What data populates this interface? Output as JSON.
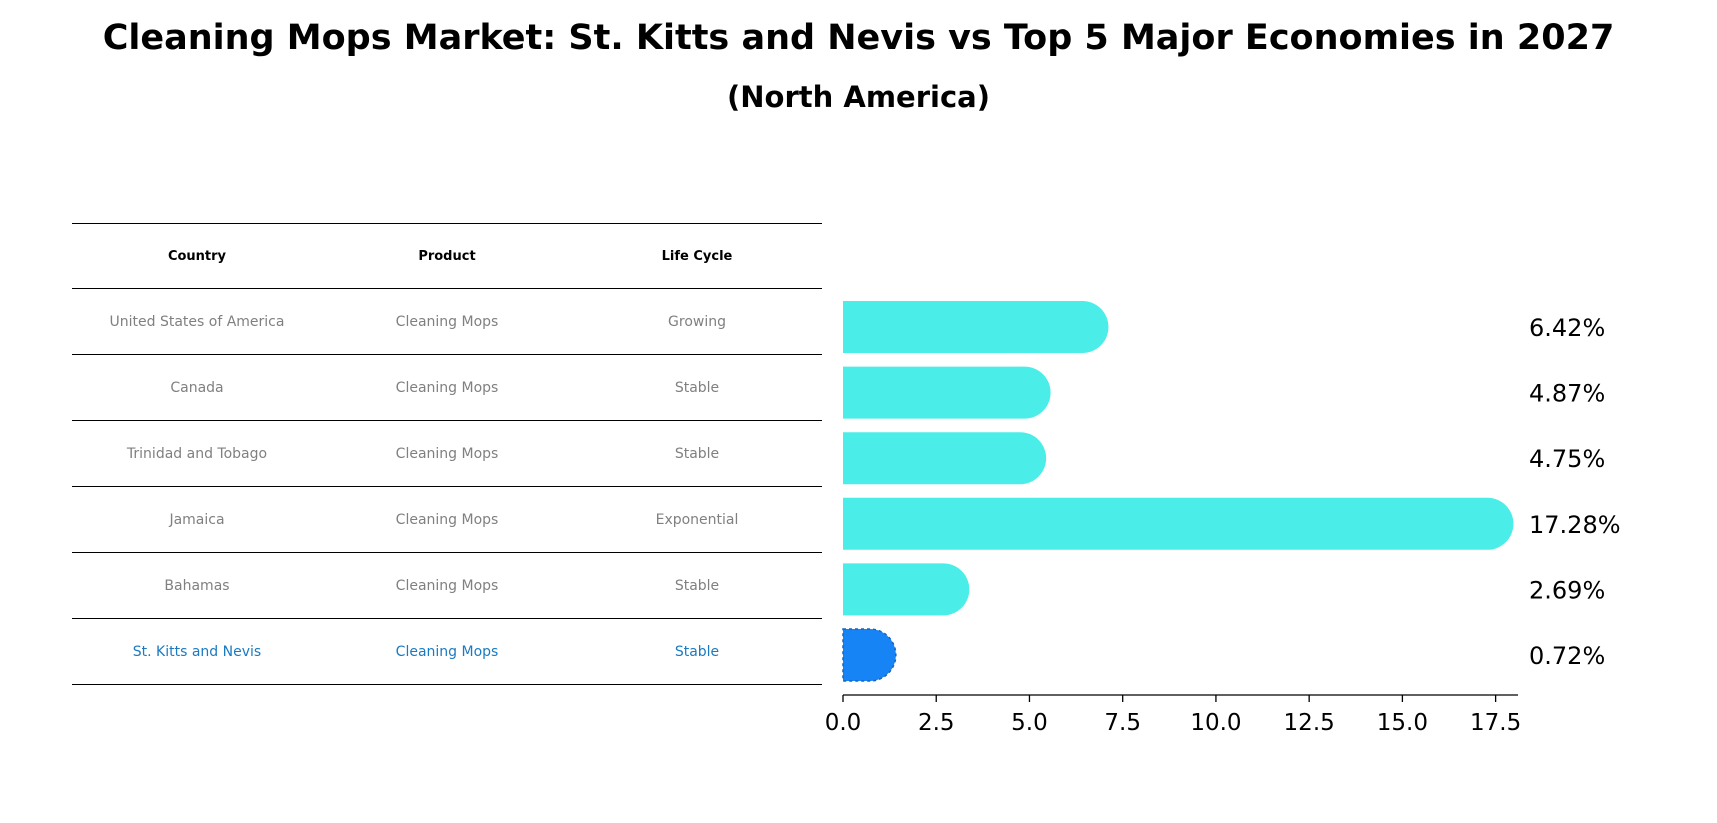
{
  "title": "Cleaning Mops Market: St. Kitts and Nevis vs Top 5 Major Economies in 2027",
  "subtitle": "(North America)",
  "table": {
    "headers": [
      "Country",
      "Product",
      "Life Cycle"
    ],
    "rows": [
      {
        "country": "United States of America",
        "product": "Cleaning Mops",
        "life_cycle": "Growing"
      },
      {
        "country": "Canada",
        "product": "Cleaning Mops",
        "life_cycle": "Stable"
      },
      {
        "country": "Trinidad and Tobago",
        "product": "Cleaning Mops",
        "life_cycle": "Stable"
      },
      {
        "country": "Jamaica",
        "product": "Cleaning Mops",
        "life_cycle": "Exponential"
      },
      {
        "country": "Bahamas",
        "product": "Cleaning Mops",
        "life_cycle": "Stable"
      },
      {
        "country": "St. Kitts and Nevis",
        "product": "Cleaning Mops",
        "life_cycle": "Stable"
      }
    ]
  },
  "chart_data": {
    "type": "bar",
    "orientation": "horizontal",
    "title": "Cleaning Mops Market: St. Kitts and Nevis vs Top 5 Major Economies in 2027",
    "subtitle": "(North America)",
    "categories": [
      "United States of America",
      "Canada",
      "Trinidad and Tobago",
      "Jamaica",
      "Bahamas",
      "St. Kitts and Nevis"
    ],
    "values": [
      6.42,
      4.87,
      4.75,
      17.28,
      2.69,
      0.72
    ],
    "value_labels": [
      "6.42%",
      "4.87%",
      "4.75%",
      "17.28%",
      "2.69%",
      "0.72%"
    ],
    "xlim": [
      0,
      18.1
    ],
    "xticks": [
      0.0,
      2.5,
      5.0,
      7.5,
      10.0,
      12.5,
      15.0,
      17.5
    ],
    "xtick_labels": [
      "0.0",
      "2.5",
      "5.0",
      "7.5",
      "10.0",
      "12.5",
      "15.0",
      "17.5"
    ],
    "xlabel": "",
    "ylabel": "",
    "colors": {
      "default": "#4AEDE8",
      "highlight": "#1784F5"
    },
    "highlight_index": 5
  }
}
